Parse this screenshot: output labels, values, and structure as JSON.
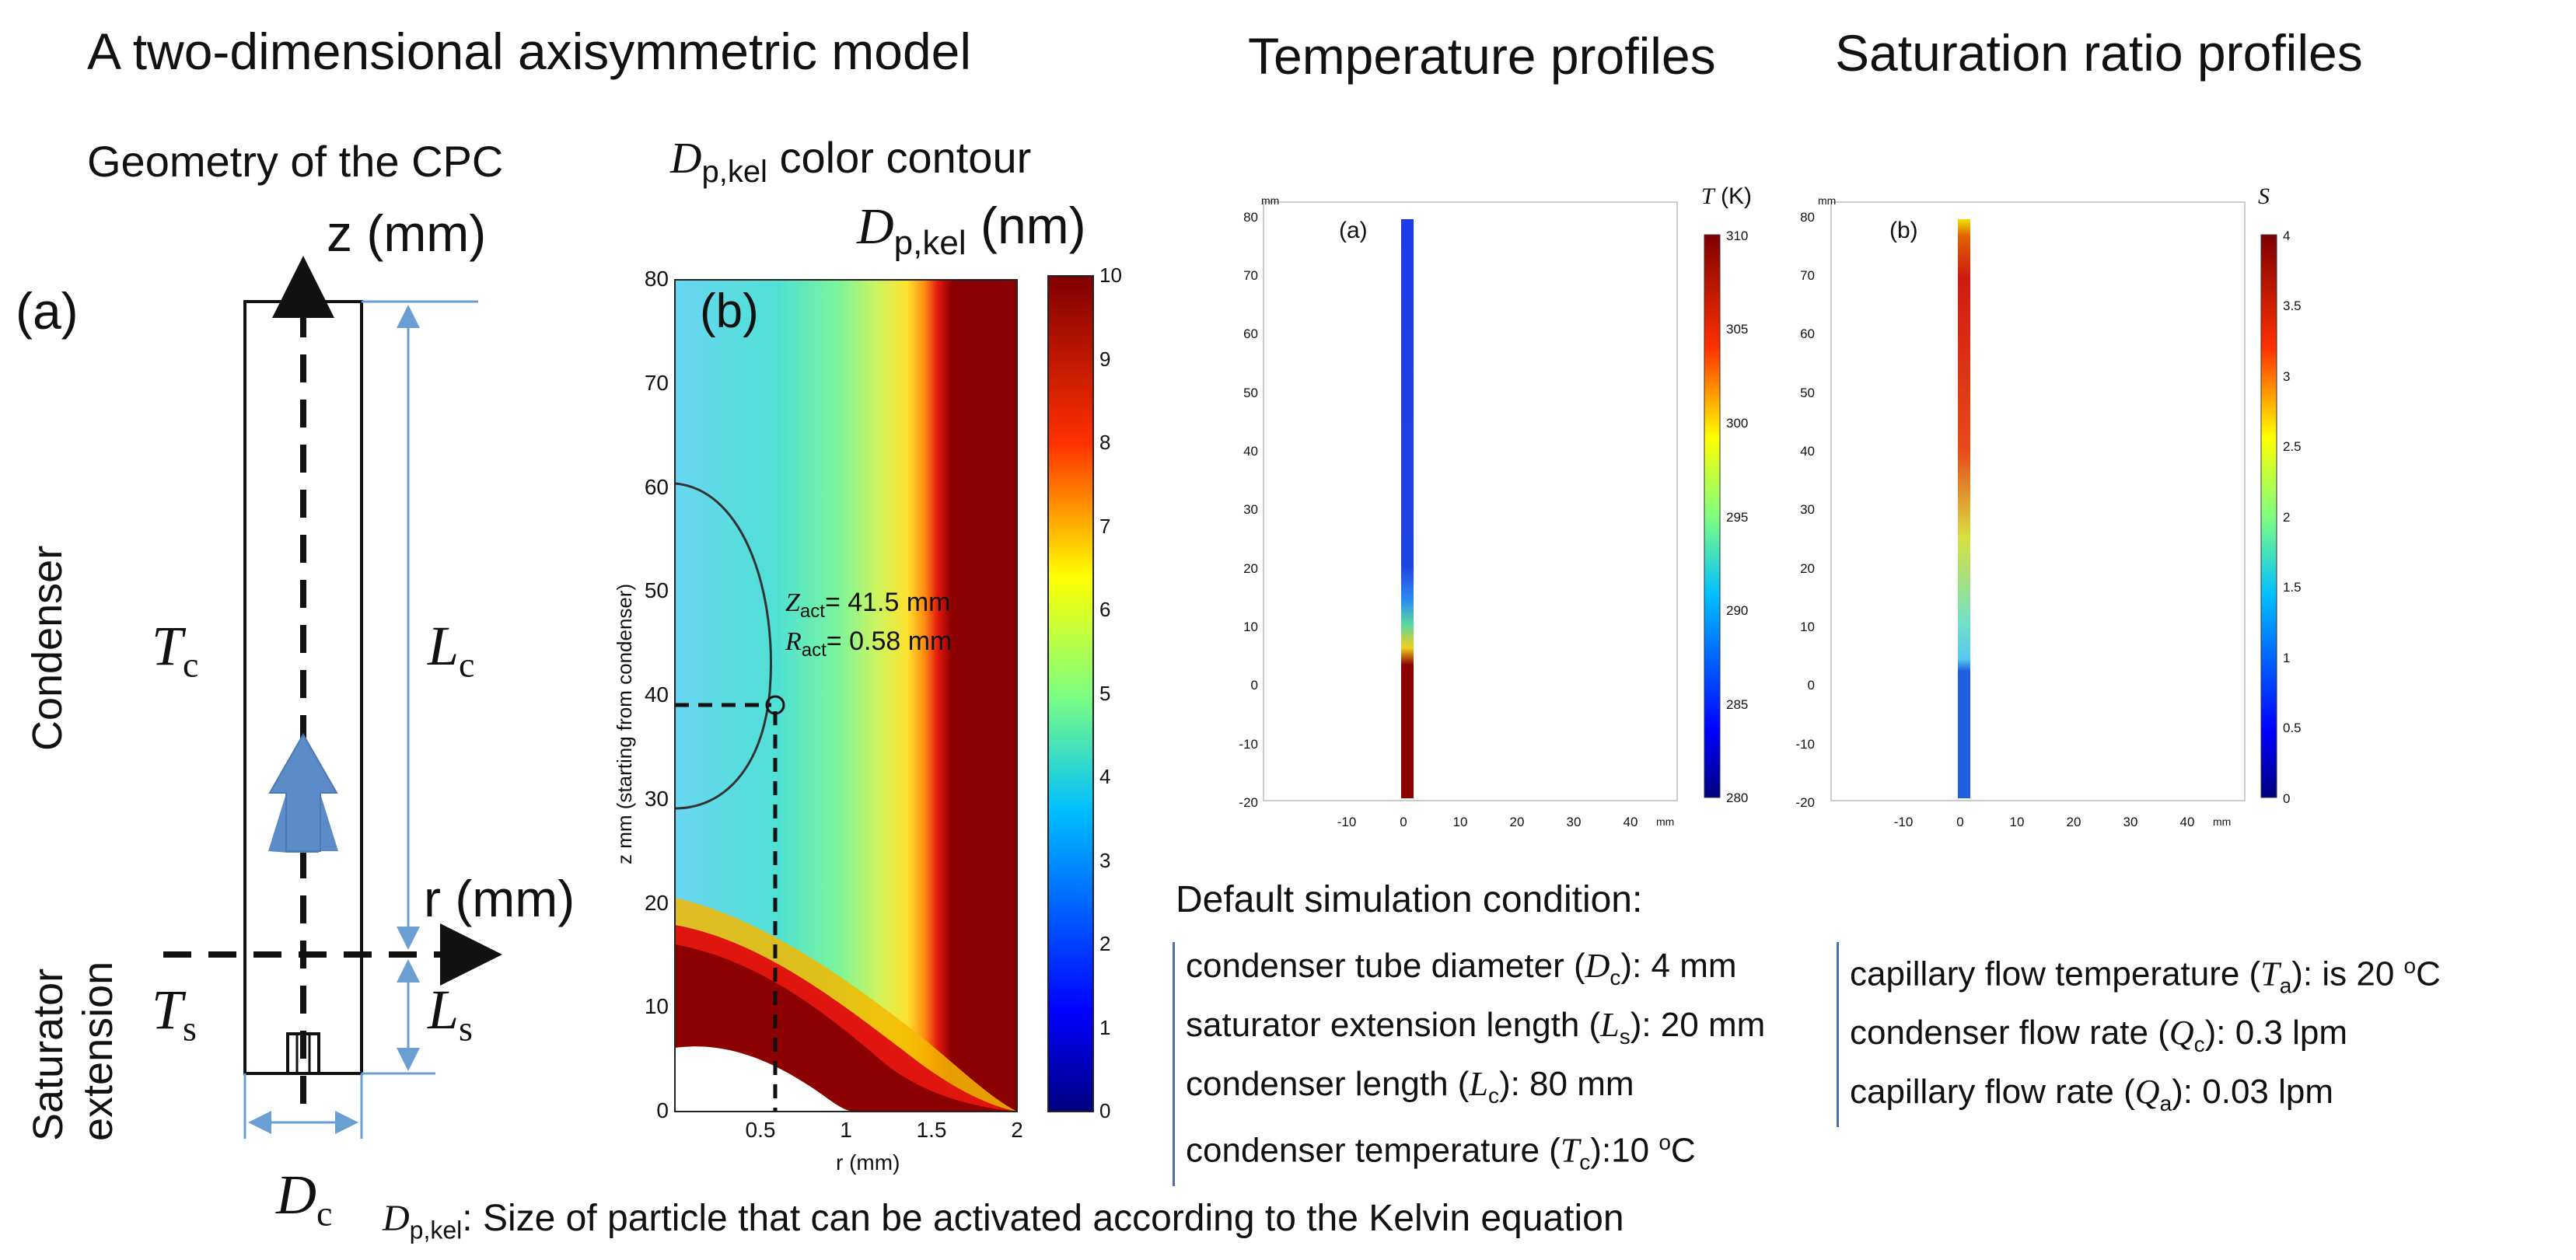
{
  "titles": {
    "model": "A two-dimensional axisymmetric model",
    "temperature": "Temperature profiles",
    "saturation": "Saturation ratio profiles",
    "geometry": "Geometry of the CPC",
    "contour_suffix": " color contour",
    "contour_symbol": "D",
    "contour_symbol_sub": "p,kel"
  },
  "geometry": {
    "panel_label": "(a)",
    "z_axis": "z (mm)",
    "r_axis": "r (mm)",
    "condenser_label": "Condenser",
    "saturator_label_1": "Saturator",
    "saturator_label_2": "extension",
    "Tc": "T",
    "Tc_sub": "c",
    "Ts": "T",
    "Ts_sub": "s",
    "Lc": "L",
    "Lc_sub": "c",
    "Ls": "L",
    "Ls_sub": "s",
    "Dc": "D",
    "Dc_sub": "c"
  },
  "contour": {
    "panel_label": "(b)",
    "colorbar_title": "D",
    "colorbar_title_sub": "p,kel",
    "colorbar_unit": " (nm)",
    "ylabel": "z mm (starting from condenser)",
    "xlabel": "r (mm)",
    "yticks": [
      "0",
      "10",
      "20",
      "30",
      "40",
      "50",
      "60",
      "70",
      "80"
    ],
    "xticks": [
      "0.5",
      "1",
      "1.5",
      "2"
    ],
    "cbar_ticks": [
      "0",
      "1",
      "2",
      "3",
      "4",
      "5",
      "6",
      "7",
      "8",
      "9",
      "10"
    ],
    "zact_label": "Z",
    "zact_sub": "act",
    "zact_value": "= 41.5 mm",
    "ract_label": "R",
    "ract_sub": "act",
    "ract_value": "= 0.58 mm"
  },
  "temp_plot": {
    "panel_label": "(a)",
    "unit": "mm",
    "cbar_title": "T",
    "cbar_unit": " (K)",
    "yticks": [
      "80",
      "70",
      "60",
      "50",
      "40",
      "30",
      "20",
      "10",
      "0",
      "-10",
      "-20"
    ],
    "xticks": [
      "-10",
      "0",
      "10",
      "20",
      "30",
      "40"
    ],
    "cbar_ticks": [
      "310",
      "305",
      "300",
      "295",
      "290",
      "285",
      "280"
    ]
  },
  "sat_plot": {
    "panel_label": "(b)",
    "unit": "mm",
    "cbar_title": "S",
    "yticks": [
      "80",
      "70",
      "60",
      "50",
      "40",
      "30",
      "20",
      "10",
      "0",
      "-10",
      "-20"
    ],
    "xticks": [
      "-10",
      "0",
      "10",
      "20",
      "30",
      "40"
    ],
    "cbar_ticks": [
      "4",
      "3.5",
      "3",
      "2.5",
      "2",
      "1.5",
      "1",
      "0.5",
      "0"
    ]
  },
  "conditions": {
    "heading": "Default simulation condition:",
    "left": [
      {
        "pre": "condenser tube diameter (",
        "sym": "D",
        "sub": "c",
        "post": "): 4 mm",
        "sup": ""
      },
      {
        "pre": "saturator extension length (",
        "sym": "L",
        "sub": "s",
        "post": "): 20 mm",
        "sup": ""
      },
      {
        "pre": "condenser length (",
        "sym": "L",
        "sub": "c",
        "post": "): 80 mm",
        "sup": ""
      },
      {
        "pre": "condenser temperature (",
        "sym": "T",
        "sub": "c",
        "post": "):10 ",
        "sup": "o",
        "post2": "C"
      }
    ],
    "right": [
      {
        "pre": "capillary flow temperature (",
        "sym": "T",
        "sub": "a",
        "post": "): is 20 ",
        "sup": "o",
        "post2": "C"
      },
      {
        "pre": "condenser flow rate (",
        "sym": "Q",
        "sub": "c",
        "post": "): 0.3 lpm",
        "sup": ""
      },
      {
        "pre": "capillary flow rate (",
        "sym": "Q",
        "sub": "a",
        "post": "): 0.03 lpm",
        "sup": ""
      }
    ]
  },
  "footnote": {
    "sym": "D",
    "sub": "p,kel",
    "text": ": Size of particle that can be activated according to the Kelvin equation"
  },
  "colors": {
    "arrow_blue": "#5b8cc7",
    "dim_blue": "#6a9fd4",
    "panel_border": "#4a6fa5"
  }
}
